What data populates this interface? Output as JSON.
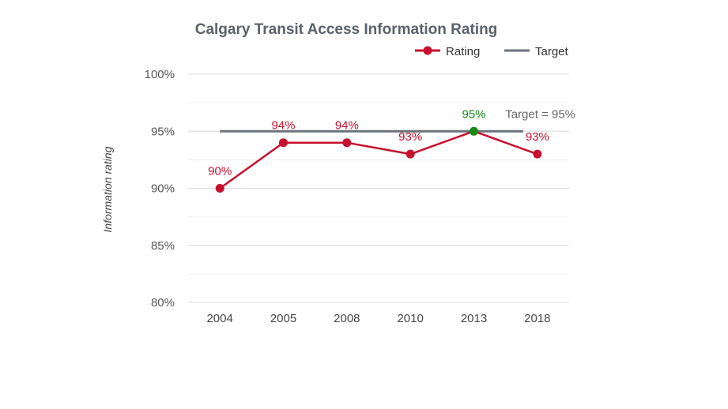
{
  "chart_data": {
    "type": "line",
    "title": "Calgary Transit Access Information Rating",
    "xlabel": "",
    "ylabel": "Information rating",
    "categories": [
      "2004",
      "2005",
      "2008",
      "2010",
      "2013",
      "2018"
    ],
    "ylim": [
      80,
      100
    ],
    "yticks": [
      80,
      85,
      90,
      95,
      100
    ],
    "ytick_labels": [
      "80%",
      "85%",
      "90%",
      "95%",
      "100%"
    ],
    "grid": true,
    "legend": {
      "placement": "top-right",
      "entries": [
        {
          "label": "Rating",
          "color": "#c8102e"
        },
        {
          "label": "Target",
          "color": "#6b737c"
        }
      ]
    },
    "series": [
      {
        "name": "Rating",
        "color": "#c8102e",
        "values": [
          90,
          94,
          94,
          93,
          95,
          93
        ],
        "data_labels": [
          "90%",
          "94%",
          "94%",
          "93%",
          "95%",
          "93%"
        ],
        "highlight": {
          "index": 4,
          "color": "#128c12"
        }
      },
      {
        "name": "Target",
        "color": "#6b737c",
        "values": [
          95,
          95,
          95,
          95,
          95,
          95
        ],
        "annotation": "Target = 95%"
      }
    ]
  }
}
